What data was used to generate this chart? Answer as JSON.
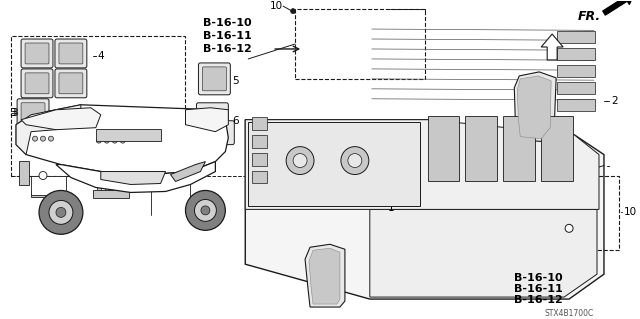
{
  "bg_color": "#ffffff",
  "title_code": "STX4B1700C",
  "fr_label": "FR.",
  "ref_labels_top": [
    "B-16-10",
    "B-16-11",
    "B-16-12"
  ],
  "ref_labels_bottom": [
    "B-16-10",
    "B-16-11",
    "B-16-12"
  ],
  "line_color": "#1a1a1a",
  "part_fill": "#e8e8e8",
  "part_fill_dark": "#c8c8c8",
  "label_fontsize": 7.5,
  "bold_fontsize": 7.5
}
